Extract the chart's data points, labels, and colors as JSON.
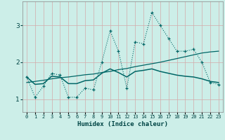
{
  "xlabel": "Humidex (Indice chaleur)",
  "bg_color": "#cceee8",
  "grid_color": "#d4aaaa",
  "line_color": "#006666",
  "x_values": [
    0,
    1,
    2,
    3,
    4,
    5,
    6,
    7,
    8,
    9,
    10,
    11,
    12,
    13,
    14,
    15,
    16,
    17,
    18,
    19,
    20,
    21,
    22,
    23
  ],
  "dotted_y": [
    1.6,
    1.05,
    1.35,
    1.7,
    1.65,
    1.05,
    1.05,
    1.3,
    1.25,
    2.0,
    2.85,
    2.3,
    1.3,
    2.55,
    2.5,
    3.35,
    3.0,
    2.65,
    2.3,
    2.3,
    2.35,
    2.0,
    1.45,
    1.4
  ],
  "smooth_y": [
    1.6,
    1.4,
    1.42,
    1.62,
    1.6,
    1.42,
    1.42,
    1.5,
    1.52,
    1.7,
    1.82,
    1.72,
    1.6,
    1.75,
    1.78,
    1.82,
    1.75,
    1.7,
    1.65,
    1.62,
    1.6,
    1.55,
    1.48,
    1.45
  ],
  "trend_y": [
    1.45,
    1.48,
    1.51,
    1.55,
    1.58,
    1.6,
    1.63,
    1.66,
    1.68,
    1.72,
    1.75,
    1.8,
    1.83,
    1.88,
    1.92,
    1.96,
    2.0,
    2.05,
    2.1,
    2.15,
    2.2,
    2.25,
    2.28,
    2.3
  ],
  "ylim": [
    0.65,
    3.65
  ],
  "yticks": [
    1,
    2,
    3
  ],
  "xlim": [
    -0.5,
    23.5
  ]
}
